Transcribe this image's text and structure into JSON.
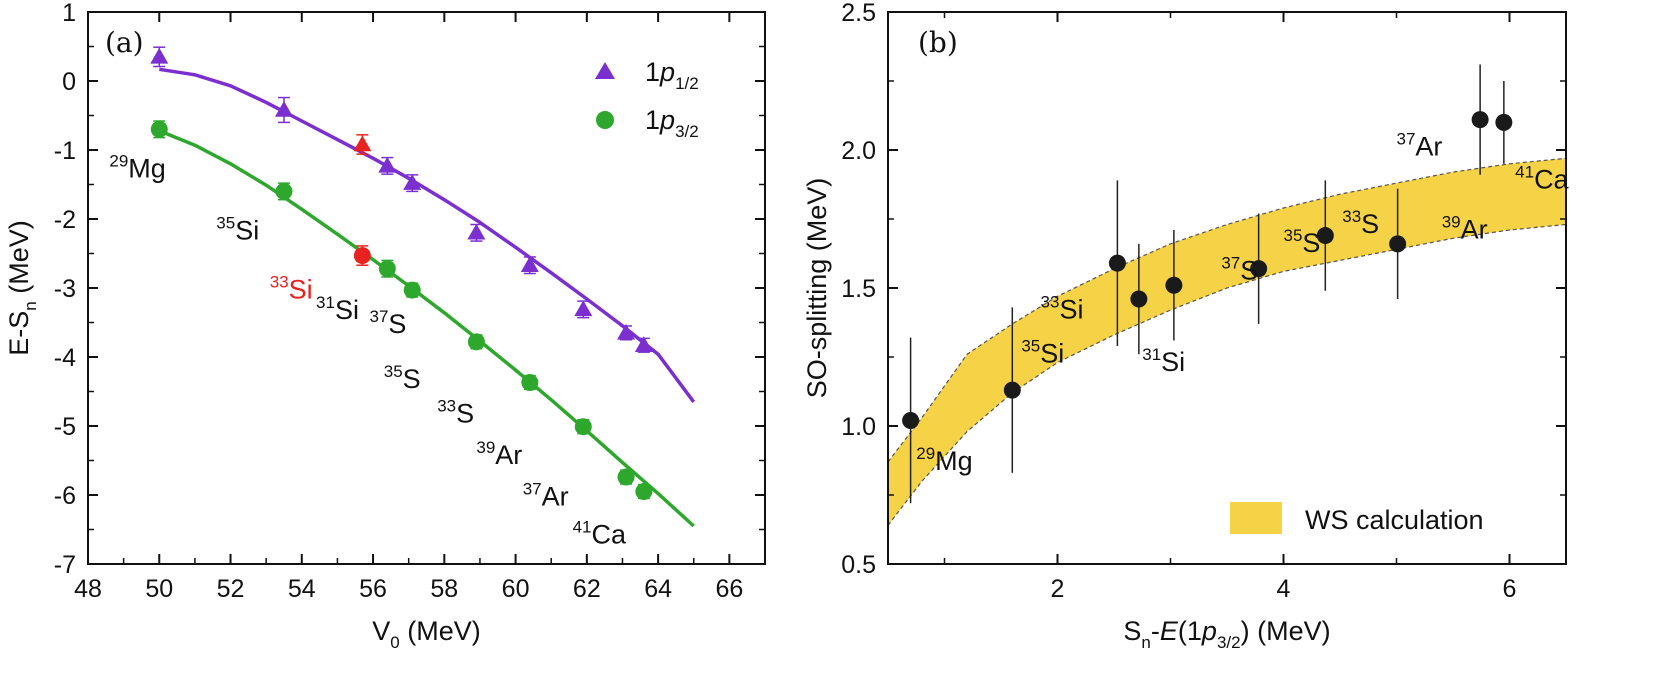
{
  "colors": {
    "p12": "#7B2FD0",
    "p32": "#2DA82D",
    "highlight": "#E8231F",
    "band": "#F6D247",
    "band_edge": "#555555",
    "point_b": "#1a1a1a"
  },
  "chart_data": [
    {
      "type": "scatter",
      "panel_label": "(a)",
      "xlabel": {
        "main": "V",
        "sub": "0",
        "rest": " (MeV)"
      },
      "ylabel": {
        "main": "E-S",
        "sub": "n",
        "rest": " (MeV)"
      },
      "xlim": [
        48,
        67
      ],
      "ylim": [
        -7,
        1
      ],
      "xticks": [
        48,
        50,
        52,
        54,
        56,
        58,
        60,
        62,
        64,
        66
      ],
      "yticks": [
        -7,
        -6,
        -5,
        -4,
        -3,
        -2,
        -1,
        0,
        1
      ],
      "legend": [
        {
          "marker": "triangle",
          "pre": "1",
          "italic": "p",
          "sub": "1/2"
        },
        {
          "marker": "circle",
          "pre": "1",
          "italic": "p",
          "sub": "3/2"
        }
      ],
      "series": [
        {
          "name": "1p1/2",
          "marker": "triangle",
          "points": [
            {
              "x": 50.0,
              "y": 0.35,
              "err": 0.14
            },
            {
              "x": 53.5,
              "y": -0.42,
              "err": 0.18
            },
            {
              "x": 55.7,
              "y": -0.92,
              "err": 0.14,
              "highlight": true
            },
            {
              "x": 56.4,
              "y": -1.23,
              "err": 0.12
            },
            {
              "x": 57.1,
              "y": -1.48,
              "err": 0.12
            },
            {
              "x": 58.9,
              "y": -2.2,
              "err": 0.12
            },
            {
              "x": 60.4,
              "y": -2.67,
              "err": 0.12
            },
            {
              "x": 61.9,
              "y": -3.31,
              "err": 0.12
            },
            {
              "x": 63.1,
              "y": -3.65,
              "err": 0.1
            },
            {
              "x": 63.6,
              "y": -3.83,
              "err": 0.1
            }
          ],
          "curve": [
            [
              50,
              0.17
            ],
            [
              51,
              0.09
            ],
            [
              52,
              -0.07
            ],
            [
              53,
              -0.31
            ],
            [
              54,
              -0.58
            ],
            [
              55,
              -0.85
            ],
            [
              56,
              -1.12
            ],
            [
              57,
              -1.41
            ],
            [
              58,
              -1.72
            ],
            [
              59,
              -2.05
            ],
            [
              60,
              -2.41
            ],
            [
              61,
              -2.78
            ],
            [
              62,
              -3.16
            ],
            [
              63,
              -3.55
            ],
            [
              64,
              -3.96
            ],
            [
              65,
              -4.65
            ]
          ]
        },
        {
          "name": "1p3/2",
          "marker": "circle",
          "points": [
            {
              "x": 50.0,
              "y": -0.7,
              "err": 0.12
            },
            {
              "x": 53.5,
              "y": -1.6,
              "err": 0.12
            },
            {
              "x": 55.7,
              "y": -2.53,
              "err": 0.14,
              "highlight": true
            },
            {
              "x": 56.4,
              "y": -2.72,
              "err": 0.12
            },
            {
              "x": 57.1,
              "y": -3.03,
              "err": 0.1
            },
            {
              "x": 58.9,
              "y": -3.78,
              "err": 0.1
            },
            {
              "x": 60.4,
              "y": -4.37,
              "err": 0.1
            },
            {
              "x": 61.9,
              "y": -5.01,
              "err": 0.1
            },
            {
              "x": 63.1,
              "y": -5.74,
              "err": 0.1
            },
            {
              "x": 63.6,
              "y": -5.95,
              "err": 0.1
            }
          ],
          "curve": [
            [
              50,
              -0.72
            ],
            [
              51,
              -0.93
            ],
            [
              52,
              -1.2
            ],
            [
              53,
              -1.51
            ],
            [
              54,
              -1.86
            ],
            [
              55,
              -2.22
            ],
            [
              56,
              -2.59
            ],
            [
              57,
              -2.97
            ],
            [
              58,
              -3.36
            ],
            [
              59,
              -3.77
            ],
            [
              60,
              -4.19
            ],
            [
              61,
              -4.62
            ],
            [
              62,
              -5.07
            ],
            [
              63,
              -5.53
            ],
            [
              64,
              -5.98
            ],
            [
              65,
              -6.45
            ]
          ]
        }
      ],
      "annotations": [
        {
          "mass": "29",
          "element": "Mg",
          "x": 48.6,
          "y": -1.4
        },
        {
          "mass": "35",
          "element": "Si",
          "x": 51.6,
          "y": -2.3
        },
        {
          "mass": "33",
          "element": "Si",
          "x": 53.1,
          "y": -3.15,
          "highlight": true
        },
        {
          "mass": "31",
          "element": "Si",
          "x": 54.4,
          "y": -3.45
        },
        {
          "mass": "37",
          "element": "S",
          "x": 55.9,
          "y": -3.65
        },
        {
          "mass": "35",
          "element": "S",
          "x": 56.3,
          "y": -4.45
        },
        {
          "mass": "33",
          "element": "S",
          "x": 57.8,
          "y": -4.95
        },
        {
          "mass": "39",
          "element": "Ar",
          "x": 58.9,
          "y": -5.55
        },
        {
          "mass": "37",
          "element": "Ar",
          "x": 60.2,
          "y": -6.15
        },
        {
          "mass": "41",
          "element": "Ca",
          "x": 61.6,
          "y": -6.7
        }
      ]
    },
    {
      "type": "scatter",
      "panel_label": "(b)",
      "xlabel": {
        "pre": "S",
        "sub1": "n",
        "mid": "-",
        "italicE": "E",
        "open": "(1",
        "italicP": "p",
        "sub2": "3/2",
        "close": ") (MeV)"
      },
      "ylabel": "SO-splitting (MeV)",
      "xlim": [
        0.5,
        6.5
      ],
      "ylim": [
        0.5,
        2.5
      ],
      "xticks": [
        2,
        4,
        6
      ],
      "yticks": [
        0.5,
        1.0,
        1.5,
        2.0,
        2.5
      ],
      "ytick_labels": [
        "0.5",
        "1.0",
        "1.5",
        "2.0",
        "2.5"
      ],
      "legend": [
        {
          "label": "WS calculation"
        }
      ],
      "points": [
        {
          "x": 0.7,
          "y": 1.02,
          "err": 0.3
        },
        {
          "x": 1.6,
          "y": 1.13,
          "err": 0.3
        },
        {
          "x": 2.53,
          "y": 1.59,
          "err": 0.3
        },
        {
          "x": 2.72,
          "y": 1.46,
          "err": 0.2
        },
        {
          "x": 3.03,
          "y": 1.51,
          "err": 0.2
        },
        {
          "x": 3.78,
          "y": 1.57,
          "err": 0.2
        },
        {
          "x": 4.37,
          "y": 1.69,
          "err": 0.2
        },
        {
          "x": 5.01,
          "y": 1.66,
          "err": 0.2
        },
        {
          "x": 5.74,
          "y": 2.11,
          "err": 0.2
        },
        {
          "x": 5.95,
          "y": 2.1,
          "err": 0.15
        }
      ],
      "band_upper": [
        [
          0.5,
          0.87
        ],
        [
          0.8,
          1.03
        ],
        [
          1.2,
          1.26
        ],
        [
          1.6,
          1.37
        ],
        [
          2.0,
          1.47
        ],
        [
          2.5,
          1.57
        ],
        [
          3.0,
          1.66
        ],
        [
          3.5,
          1.73
        ],
        [
          4.0,
          1.79
        ],
        [
          4.5,
          1.84
        ],
        [
          5.0,
          1.88
        ],
        [
          5.5,
          1.92
        ],
        [
          6.0,
          1.95
        ],
        [
          6.5,
          1.97
        ]
      ],
      "band_lower": [
        [
          0.5,
          0.64
        ],
        [
          0.8,
          0.8
        ],
        [
          1.2,
          0.98
        ],
        [
          1.6,
          1.12
        ],
        [
          2.0,
          1.23
        ],
        [
          2.5,
          1.33
        ],
        [
          3.0,
          1.42
        ],
        [
          3.5,
          1.5
        ],
        [
          4.0,
          1.56
        ],
        [
          4.5,
          1.6
        ],
        [
          5.0,
          1.64
        ],
        [
          5.5,
          1.68
        ],
        [
          6.0,
          1.71
        ],
        [
          6.5,
          1.73
        ]
      ],
      "annotations": [
        {
          "mass": "29",
          "element": "Mg",
          "x": 0.75,
          "y": 0.84
        },
        {
          "mass": "35",
          "element": "Si",
          "x": 1.68,
          "y": 1.23
        },
        {
          "mass": "33",
          "element": "Si",
          "x": 1.85,
          "y": 1.39
        },
        {
          "mass": "31",
          "element": "Si",
          "x": 2.75,
          "y": 1.2
        },
        {
          "mass": "37",
          "element": "S",
          "x": 3.45,
          "y": 1.53
        },
        {
          "mass": "35",
          "element": "S",
          "x": 4.0,
          "y": 1.63
        },
        {
          "mass": "33",
          "element": "S",
          "x": 4.52,
          "y": 1.7
        },
        {
          "mass": "39",
          "element": "Ar",
          "x": 5.4,
          "y": 1.68
        },
        {
          "mass": "37",
          "element": "Ar",
          "x": 5.0,
          "y": 1.98
        },
        {
          "mass": "41",
          "element": "Ca",
          "x": 6.05,
          "y": 1.86
        }
      ]
    }
  ]
}
